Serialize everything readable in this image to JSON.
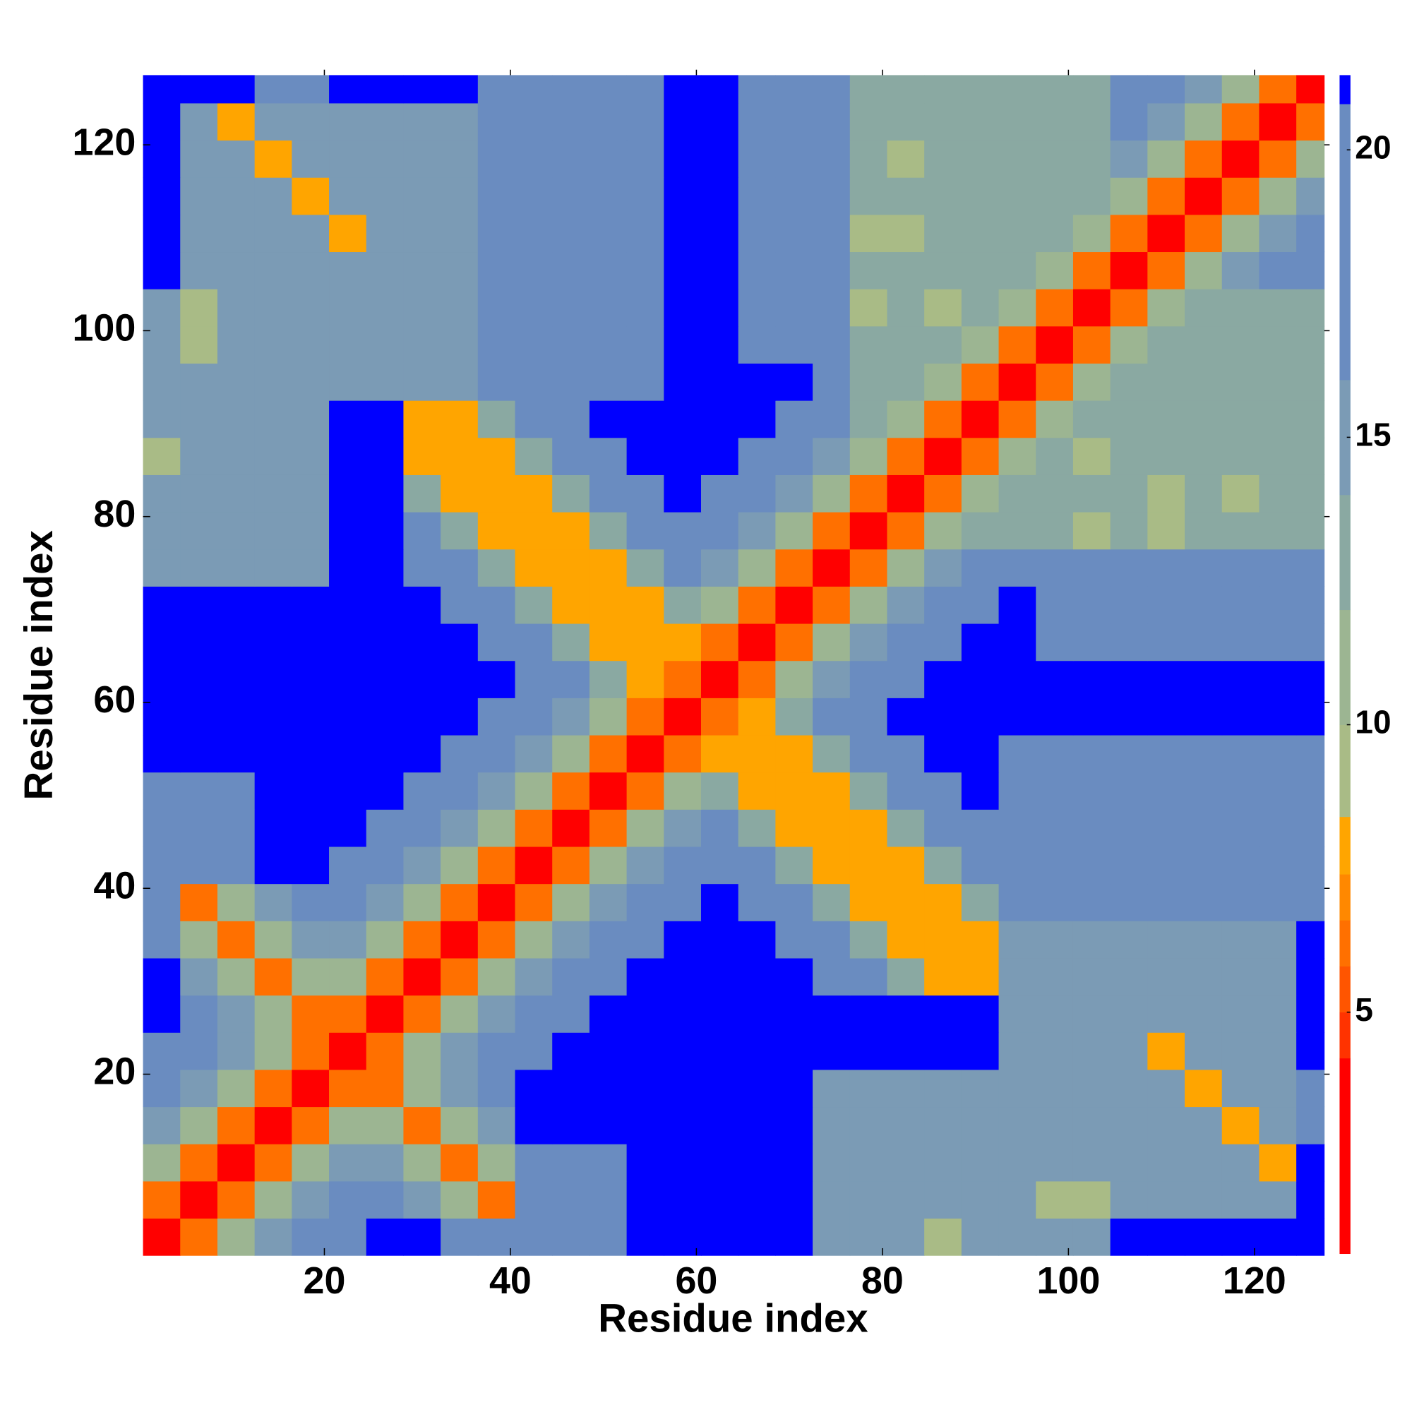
{
  "chart_data": {
    "type": "heatmap",
    "xlabel": "Residue index",
    "ylabel": "Residue index",
    "xlim": [
      0.5,
      127.5
    ],
    "ylim": [
      0.5,
      127.5
    ],
    "xticks": [
      20,
      40,
      60,
      80,
      100,
      120
    ],
    "yticks": [
      20,
      40,
      60,
      80,
      100,
      120
    ],
    "x_edges": [
      0.5,
      4.5,
      8.5,
      12.5,
      16.5,
      20.5,
      24.5,
      28.5,
      32.5,
      36.5,
      40.5,
      44.5,
      48.5,
      52.5,
      56.5,
      60.5,
      64.5,
      68.5,
      72.5,
      76.5,
      80.5,
      84.5,
      88.5,
      92.5,
      96.5,
      100.5,
      104.5,
      108.5,
      112.5,
      116.5,
      120.5,
      124.5,
      127.5
    ],
    "y_edges": [
      0.5,
      4.5,
      8.5,
      12.5,
      16.5,
      20.5,
      24.5,
      28.5,
      32.5,
      36.5,
      40.5,
      44.5,
      48.5,
      52.5,
      56.5,
      60.5,
      64.5,
      68.5,
      72.5,
      76.5,
      80.5,
      84.5,
      88.5,
      92.5,
      96.5,
      100.5,
      104.5,
      108.5,
      112.5,
      116.5,
      120.5,
      124.5,
      127.5
    ],
    "z": [
      [
        3.5,
        6.5,
        10.5,
        14,
        17,
        19.5,
        22,
        22,
        19,
        19,
        19,
        19,
        19,
        22,
        22,
        22,
        22,
        22,
        14,
        14,
        14,
        9,
        14,
        15,
        15,
        15,
        22,
        22,
        22,
        22,
        22,
        22
      ],
      [
        6.5,
        3.5,
        6.5,
        10.5,
        14,
        17,
        19.5,
        15,
        11,
        6,
        19,
        19,
        19,
        22,
        22,
        22,
        22,
        22,
        14,
        14,
        14,
        14,
        14,
        15,
        9,
        9,
        15,
        15,
        15,
        15,
        15,
        22
      ],
      [
        10.5,
        6.5,
        3.5,
        6.5,
        10.5,
        14,
        15,
        11,
        6,
        11,
        19,
        19,
        19,
        22,
        22,
        22,
        22,
        22,
        14,
        14,
        14,
        14,
        14,
        15,
        15,
        15,
        15,
        15,
        15,
        15,
        8,
        22
      ],
      [
        14,
        10.5,
        6.5,
        3.5,
        6.5,
        10.5,
        11,
        6,
        11,
        15,
        22,
        22,
        22,
        22,
        22,
        22,
        22,
        22,
        14,
        14,
        14,
        14,
        14,
        15,
        15,
        15,
        15,
        15,
        15,
        8,
        15,
        17
      ],
      [
        17,
        14,
        10.5,
        6.5,
        3.5,
        6.5,
        6,
        11,
        15,
        19.5,
        22,
        22,
        22,
        22,
        22,
        22,
        22,
        22,
        14,
        14,
        14,
        14,
        14,
        15,
        15,
        15,
        15,
        15,
        8,
        15,
        15,
        17
      ],
      [
        19.5,
        17,
        14,
        10.5,
        6.5,
        3.5,
        6.5,
        10.5,
        14,
        17,
        19.5,
        22,
        22,
        22,
        22,
        22,
        22,
        22,
        22,
        22,
        22,
        22,
        22,
        15,
        15,
        15,
        15,
        8,
        15,
        15,
        15,
        22
      ],
      [
        22,
        19.5,
        15,
        11,
        6,
        6.5,
        3.5,
        6.5,
        10.5,
        14,
        17,
        19.5,
        22,
        22,
        22,
        22,
        22,
        22,
        22,
        22,
        22,
        22,
        22,
        15,
        15,
        15,
        15,
        15,
        15,
        15,
        15,
        22
      ],
      [
        22,
        15,
        11,
        6,
        11,
        10.5,
        6.5,
        3.5,
        6.5,
        10.5,
        14,
        17,
        19.5,
        22,
        22,
        22,
        22,
        22,
        16,
        16,
        12,
        8,
        8,
        15,
        15,
        15,
        15,
        15,
        15,
        15,
        15,
        22
      ],
      [
        19,
        11,
        6,
        11,
        15,
        14,
        10.5,
        6.5,
        3.5,
        6.5,
        10.5,
        14,
        17,
        19.5,
        22,
        22,
        22,
        16,
        16,
        12,
        8,
        8,
        8,
        15,
        15,
        15,
        15,
        15,
        15,
        15,
        15,
        22
      ],
      [
        19,
        6,
        11,
        15,
        19.5,
        17,
        14,
        10.5,
        6.5,
        3.5,
        6.5,
        10.5,
        14,
        17,
        19.5,
        22,
        16,
        16,
        12,
        8,
        8,
        8,
        12,
        18,
        18,
        18,
        18,
        18,
        18,
        18,
        18,
        18
      ],
      [
        19,
        19,
        19,
        22,
        22,
        19.5,
        17,
        14,
        10.5,
        6.5,
        3.5,
        6.5,
        10.5,
        14,
        17,
        16,
        16,
        12,
        8,
        8,
        8,
        12,
        16,
        18,
        18,
        18,
        18,
        18,
        18,
        18,
        18,
        18
      ],
      [
        19,
        19,
        19,
        22,
        22,
        22,
        19.5,
        17,
        14,
        10.5,
        6.5,
        3.5,
        6.5,
        10.5,
        14,
        16,
        12,
        8,
        8,
        8,
        12,
        16,
        16,
        18,
        18,
        18,
        18,
        18,
        18,
        18,
        18,
        18
      ],
      [
        19,
        19,
        19,
        22,
        22,
        22,
        22,
        19.5,
        17,
        14,
        10.5,
        6.5,
        3.5,
        6.5,
        10.5,
        12,
        8,
        8,
        8,
        12,
        16,
        16,
        22,
        18,
        18,
        18,
        18,
        18,
        18,
        18,
        18,
        18
      ],
      [
        22,
        22,
        22,
        22,
        22,
        22,
        22,
        22,
        19.5,
        17,
        14,
        10.5,
        6.5,
        3.5,
        6.5,
        8,
        8,
        8,
        12,
        16,
        16,
        22,
        22,
        18,
        18,
        18,
        18,
        18,
        18,
        18,
        18,
        18
      ],
      [
        22,
        22,
        22,
        22,
        22,
        22,
        22,
        22,
        22,
        19.5,
        17,
        14,
        10.5,
        6.5,
        3.5,
        6.5,
        8,
        12,
        16,
        16,
        22,
        22,
        22,
        22,
        22,
        22,
        22,
        22,
        22,
        22,
        22,
        22
      ],
      [
        22,
        22,
        22,
        22,
        22,
        22,
        22,
        22,
        22,
        22,
        16,
        16,
        12,
        8,
        6.5,
        3.5,
        6.5,
        10.5,
        14,
        17,
        19.5,
        22,
        22,
        22,
        22,
        22,
        22,
        22,
        22,
        22,
        22,
        22
      ],
      [
        22,
        22,
        22,
        22,
        22,
        22,
        22,
        22,
        22,
        16,
        16,
        12,
        8,
        8,
        8,
        6.5,
        3.5,
        6.5,
        10.5,
        14,
        17,
        19.5,
        22,
        22,
        17,
        17,
        17,
        17,
        17,
        17,
        17,
        17
      ],
      [
        22,
        22,
        22,
        22,
        22,
        22,
        22,
        22,
        16,
        16,
        12,
        8,
        8,
        8,
        12,
        10.5,
        6.5,
        3.5,
        6.5,
        10.5,
        14,
        17,
        19.5,
        22,
        17,
        17,
        17,
        17,
        17,
        17,
        17,
        17
      ],
      [
        14,
        14,
        14,
        14,
        14,
        22,
        22,
        16,
        16,
        12,
        8,
        8,
        8,
        12,
        16,
        14,
        10.5,
        6.5,
        3.5,
        6.5,
        10.5,
        14,
        17,
        19.5,
        17,
        17,
        17,
        17,
        17,
        17,
        17,
        17
      ],
      [
        14,
        14,
        14,
        14,
        14,
        22,
        22,
        16,
        12,
        8,
        8,
        8,
        12,
        16,
        16,
        17,
        14,
        10.5,
        6.5,
        3.5,
        6.5,
        10.5,
        13,
        13,
        13,
        9,
        13,
        9,
        13,
        13,
        13,
        13
      ],
      [
        14,
        14,
        14,
        14,
        14,
        22,
        22,
        12,
        8,
        8,
        8,
        12,
        16,
        16,
        22,
        19.5,
        17,
        14,
        10.5,
        6.5,
        3.5,
        6.5,
        10.5,
        13,
        13,
        13,
        13,
        9,
        13,
        9,
        13,
        13
      ],
      [
        9,
        14,
        14,
        14,
        14,
        22,
        22,
        8,
        8,
        8,
        12,
        16,
        16,
        22,
        22,
        22,
        19.5,
        17,
        14,
        10.5,
        6.5,
        3.5,
        6.5,
        10.5,
        13,
        9,
        13,
        13,
        13,
        13,
        13,
        13
      ],
      [
        14,
        14,
        14,
        14,
        14,
        22,
        22,
        8,
        8,
        12,
        16,
        16,
        22,
        22,
        22,
        22,
        22,
        19.5,
        17,
        13,
        10.5,
        6.5,
        3.5,
        6.5,
        10.5,
        13,
        13,
        13,
        13,
        13,
        13,
        13
      ],
      [
        15,
        15,
        15,
        15,
        15,
        15,
        15,
        15,
        15,
        18,
        18,
        18,
        18,
        18,
        22,
        22,
        22,
        22,
        19.5,
        13,
        13,
        10.5,
        6.5,
        3.5,
        6.5,
        10.5,
        13,
        13,
        13,
        13,
        13,
        13
      ],
      [
        15,
        9,
        15,
        15,
        15,
        15,
        15,
        15,
        15,
        18,
        18,
        18,
        18,
        18,
        22,
        22,
        17,
        17,
        17,
        13,
        13,
        13,
        10.5,
        6.5,
        3.5,
        6.5,
        10.5,
        13,
        13,
        13,
        13,
        13
      ],
      [
        15,
        9,
        15,
        15,
        15,
        15,
        15,
        15,
        15,
        18,
        18,
        18,
        18,
        18,
        22,
        22,
        17,
        17,
        17,
        9,
        13,
        9,
        13,
        10.5,
        6.5,
        3.5,
        6.5,
        10.5,
        13,
        13,
        13,
        13
      ],
      [
        22,
        15,
        15,
        15,
        15,
        15,
        15,
        15,
        15,
        18,
        18,
        18,
        18,
        18,
        22,
        22,
        17,
        17,
        17,
        13,
        13,
        13,
        13,
        13,
        10.5,
        6.5,
        3.5,
        6.5,
        10.5,
        14,
        17,
        19.5
      ],
      [
        22,
        15,
        15,
        15,
        15,
        8,
        15,
        15,
        15,
        18,
        18,
        18,
        18,
        18,
        22,
        22,
        17,
        17,
        17,
        9,
        9,
        13,
        13,
        13,
        13,
        10.5,
        6.5,
        3.5,
        6.5,
        10.5,
        14,
        17
      ],
      [
        22,
        15,
        15,
        15,
        8,
        15,
        15,
        15,
        15,
        18,
        18,
        18,
        18,
        18,
        22,
        22,
        17,
        17,
        17,
        13,
        13,
        13,
        13,
        13,
        13,
        13,
        10.5,
        6.5,
        3.5,
        6.5,
        10.5,
        14
      ],
      [
        22,
        15,
        15,
        8,
        15,
        15,
        15,
        15,
        15,
        18,
        18,
        18,
        18,
        18,
        22,
        22,
        17,
        17,
        17,
        13,
        9,
        13,
        13,
        13,
        13,
        13,
        14,
        10.5,
        6.5,
        3.5,
        6.5,
        10.5
      ],
      [
        22,
        15,
        8,
        15,
        15,
        15,
        15,
        15,
        15,
        18,
        18,
        18,
        18,
        18,
        22,
        22,
        17,
        17,
        17,
        13,
        13,
        13,
        13,
        13,
        13,
        13,
        17,
        14,
        10.5,
        6.5,
        3.5,
        6.5
      ],
      [
        22,
        22,
        22,
        17,
        17,
        22,
        22,
        22,
        22,
        18,
        18,
        18,
        18,
        18,
        22,
        22,
        17,
        17,
        17,
        13,
        13,
        13,
        13,
        13,
        13,
        13,
        19.5,
        17,
        14,
        10.5,
        6.5,
        3.5
      ]
    ],
    "colorbar": {
      "levels": [
        0.8,
        4.2,
        5,
        5.8,
        6.6,
        7.4,
        8.4,
        10,
        12,
        14,
        16,
        20.8,
        21.3
      ],
      "colors": [
        "#ff0000",
        "#ff3300",
        "#ff5500",
        "#ff7000",
        "#ff8800",
        "#ffa500",
        "#a9bb86",
        "#9cb592",
        "#8aa9a2",
        "#7b9bb5",
        "#6a8cc0",
        "#0000ff"
      ],
      "ticks": [
        5,
        10,
        15,
        20
      ]
    }
  }
}
